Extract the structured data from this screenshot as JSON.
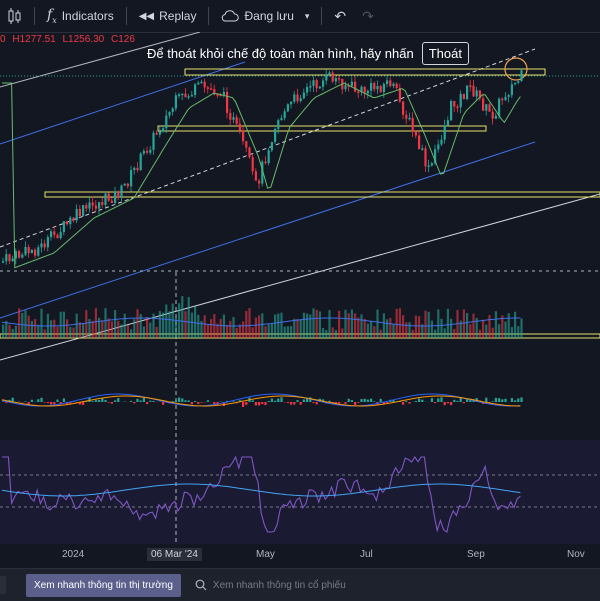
{
  "toolbar": {
    "indicators_label": "Indicators",
    "replay_label": "Replay",
    "save_label": "Đang lưu"
  },
  "ohlc": {
    "open": "0",
    "high": "H1277.51",
    "low": "L1256.30",
    "close": "C126"
  },
  "fullscreen": {
    "message": "Để thoát khỏi chế độ toàn màn hình, hãy nhấn",
    "exit_label": "Thoát"
  },
  "xaxis": {
    "labels": [
      "2024",
      "06 Mar '24",
      "May",
      "Jul",
      "Sep",
      "Nov"
    ]
  },
  "bottom_bar": {
    "market_button": "Xem nhanh thông tin thị trường",
    "stock_search_placeholder": "Xem nhanh thông tin cổ phiếu"
  },
  "colors": {
    "background": "#131722",
    "up": "#26a69a",
    "down": "#f23645",
    "ma": "#66bb6a",
    "support_box": "#e8e26a",
    "channel": "#3f6fe8"
  }
}
